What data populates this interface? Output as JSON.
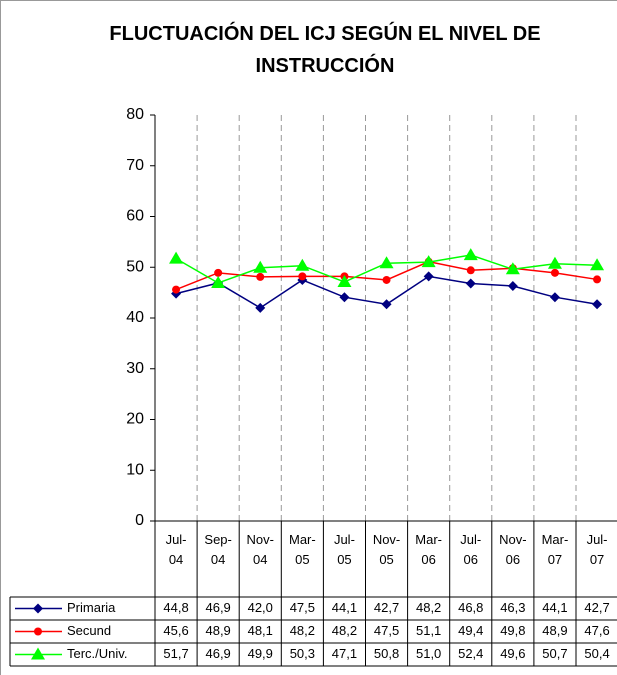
{
  "chart_data": {
    "type": "line",
    "title": "FLUCTUACIÓN DEL ICJ SEGÚN EL NIVEL DE INSTRUCCIÓN",
    "categories": [
      "Jul-04",
      "Sep-04",
      "Nov-04",
      "Mar-05",
      "Jul-05",
      "Nov-05",
      "Mar-06",
      "Jul-06",
      "Nov-06",
      "Mar-07",
      "Jul-07"
    ],
    "series": [
      {
        "name": "Primaria",
        "color": "#000080",
        "marker": "diamond",
        "values": [
          44.8,
          46.9,
          42.0,
          47.5,
          44.1,
          42.7,
          48.2,
          46.8,
          46.3,
          44.1,
          42.7
        ],
        "value_labels": [
          "44,8",
          "46,9",
          "42,0",
          "47,5",
          "44,1",
          "42,7",
          "48,2",
          "46,8",
          "46,3",
          "44,1",
          "42,7"
        ]
      },
      {
        "name": "Secund",
        "color": "#ff0000",
        "marker": "circle",
        "values": [
          45.6,
          48.9,
          48.1,
          48.2,
          48.2,
          47.5,
          51.1,
          49.4,
          49.8,
          48.9,
          47.6
        ],
        "value_labels": [
          "45,6",
          "48,9",
          "48,1",
          "48,2",
          "48,2",
          "47,5",
          "51,1",
          "49,4",
          "49,8",
          "48,9",
          "47,6"
        ]
      },
      {
        "name": "Terc./Univ.",
        "color": "#00ff00",
        "marker": "triangle",
        "values": [
          51.7,
          46.9,
          49.9,
          50.3,
          47.1,
          50.8,
          51.0,
          52.4,
          49.6,
          50.7,
          50.4
        ],
        "value_labels": [
          "51,7",
          "46,9",
          "49,9",
          "50,3",
          "47,1",
          "50,8",
          "51,0",
          "52,4",
          "49,6",
          "50,7",
          "50,4"
        ]
      }
    ],
    "ylim": [
      0,
      80
    ],
    "yticks": [
      0,
      10,
      20,
      30,
      40,
      50,
      60,
      70,
      80
    ],
    "grid": true
  }
}
